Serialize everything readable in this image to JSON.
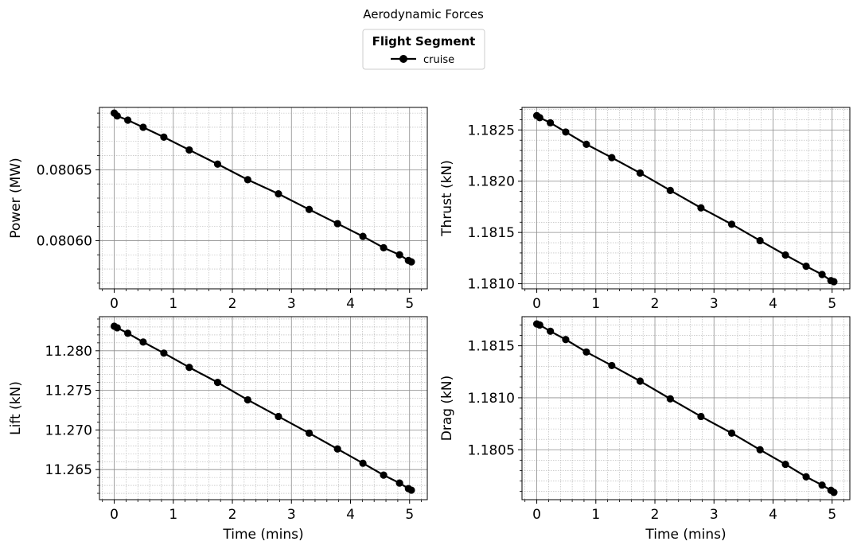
{
  "figure": {
    "title": "Aerodynamic Forces",
    "legend": {
      "title": "Flight Segment",
      "entries": [
        "cruise"
      ],
      "placement": "top-center"
    },
    "line_color": "#000000"
  },
  "chart_data": [
    {
      "type": "line",
      "xlabel": "",
      "ylabel": "Power (MW)",
      "xlim": [
        -0.25,
        5.3
      ],
      "ylim": [
        0.080566,
        0.080694
      ],
      "xticks": [
        0,
        1,
        2,
        3,
        4,
        5
      ],
      "yticks": [
        0.0806,
        0.08065
      ],
      "ytick_labels": [
        "0.08060",
        "0.08065"
      ],
      "grid": true,
      "series": [
        {
          "name": "cruise",
          "x": [
            0,
            0.05,
            0.23,
            0.49,
            0.84,
            1.27,
            1.75,
            2.26,
            2.78,
            3.3,
            3.78,
            4.21,
            4.56,
            4.83,
            4.98,
            5.03
          ],
          "y": [
            0.08069,
            0.080688,
            0.080685,
            0.08068,
            0.080673,
            0.080664,
            0.080654,
            0.080643,
            0.080633,
            0.080622,
            0.080612,
            0.080603,
            0.080595,
            0.08059,
            0.080586,
            0.080585
          ]
        }
      ]
    },
    {
      "type": "line",
      "xlabel": "",
      "ylabel": "Thrust (kN)",
      "xlim": [
        -0.25,
        5.3
      ],
      "ylim": [
        1.18095,
        1.18272
      ],
      "xticks": [
        0,
        1,
        2,
        3,
        4,
        5
      ],
      "yticks": [
        1.181,
        1.1815,
        1.182,
        1.1825
      ],
      "ytick_labels": [
        "1.1810",
        "1.1815",
        "1.1820",
        "1.1825"
      ],
      "grid": true,
      "series": [
        {
          "name": "cruise",
          "x": [
            0,
            0.05,
            0.23,
            0.49,
            0.84,
            1.27,
            1.75,
            2.26,
            2.78,
            3.3,
            3.78,
            4.21,
            4.56,
            4.83,
            4.98,
            5.03
          ],
          "y": [
            1.18264,
            1.18262,
            1.18257,
            1.18248,
            1.18236,
            1.18223,
            1.18208,
            1.18191,
            1.18174,
            1.18158,
            1.18142,
            1.18128,
            1.18117,
            1.18109,
            1.18103,
            1.18102
          ]
        }
      ]
    },
    {
      "type": "line",
      "xlabel": "Time (mins)",
      "ylabel": "Lift (kN)",
      "xlim": [
        -0.25,
        5.3
      ],
      "ylim": [
        11.2612,
        11.2843
      ],
      "xticks": [
        0,
        1,
        2,
        3,
        4,
        5
      ],
      "yticks": [
        11.265,
        11.27,
        11.275,
        11.28
      ],
      "ytick_labels": [
        "11.265",
        "11.270",
        "11.275",
        "11.280"
      ],
      "grid": true,
      "series": [
        {
          "name": "cruise",
          "x": [
            0,
            0.05,
            0.23,
            0.49,
            0.84,
            1.27,
            1.75,
            2.26,
            2.78,
            3.3,
            3.78,
            4.21,
            4.56,
            4.83,
            4.98,
            5.03
          ],
          "y": [
            11.2831,
            11.2829,
            11.2822,
            11.2811,
            11.2797,
            11.2779,
            11.276,
            11.2738,
            11.2717,
            11.2696,
            11.2676,
            11.2658,
            11.2643,
            11.2633,
            11.2626,
            11.2624
          ]
        }
      ]
    },
    {
      "type": "line",
      "xlabel": "Time (mins)",
      "ylabel": "Drag (kN)",
      "xlim": [
        -0.25,
        5.3
      ],
      "ylim": [
        1.18002,
        1.18178
      ],
      "xticks": [
        0,
        1,
        2,
        3,
        4,
        5
      ],
      "yticks": [
        1.1805,
        1.181,
        1.1815
      ],
      "ytick_labels": [
        "1.1805",
        "1.1810",
        "1.1815"
      ],
      "grid": true,
      "series": [
        {
          "name": "cruise",
          "x": [
            0,
            0.05,
            0.23,
            0.49,
            0.84,
            1.27,
            1.75,
            2.26,
            2.78,
            3.3,
            3.78,
            4.21,
            4.56,
            4.83,
            4.98,
            5.03
          ],
          "y": [
            1.18171,
            1.1817,
            1.18164,
            1.18156,
            1.18144,
            1.18131,
            1.18116,
            1.18099,
            1.18082,
            1.18066,
            1.1805,
            1.18036,
            1.18024,
            1.18016,
            1.18011,
            1.18009
          ]
        }
      ]
    }
  ]
}
